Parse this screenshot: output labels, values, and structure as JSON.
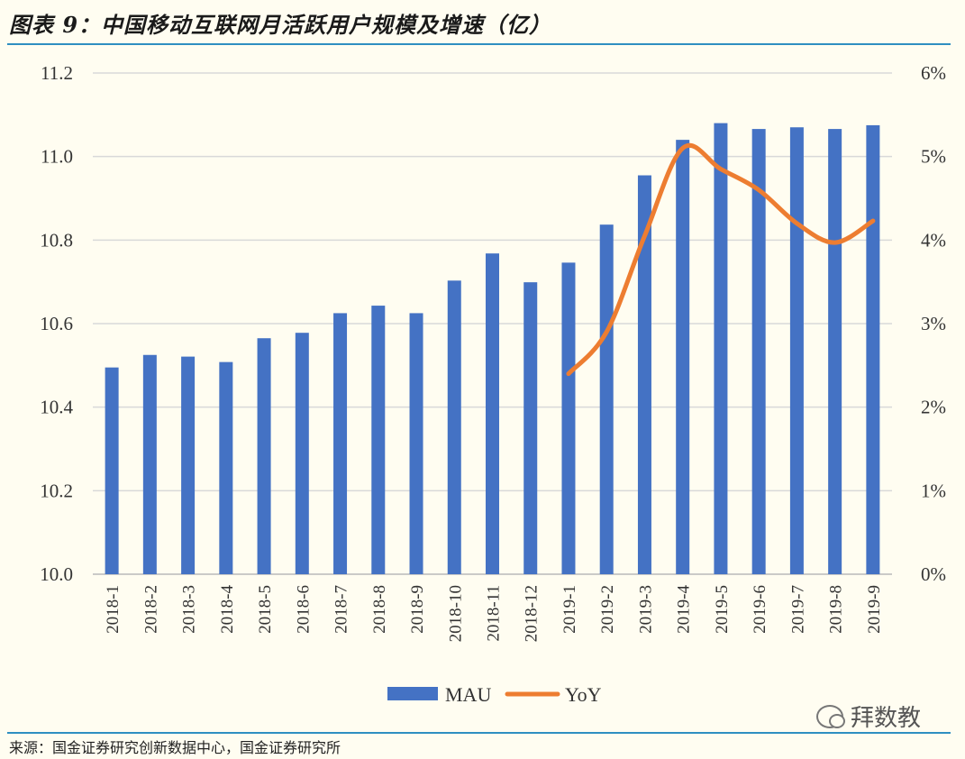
{
  "figure": {
    "title": "图表 9：中国移动互联网月活跃用户规模及增速（亿）",
    "source": "来源：国金证券研究创新数据中心，国金证券研究所",
    "watermark_text": "拜数教",
    "watermark_icon": "wechat-icon"
  },
  "chart_data": {
    "type": "bar",
    "categories": [
      "2018-1",
      "2018-2",
      "2018-3",
      "2018-4",
      "2018-5",
      "2018-6",
      "2018-7",
      "2018-8",
      "2018-9",
      "2018-10",
      "2018-11",
      "2018-12",
      "2019-1",
      "2019-2",
      "2019-3",
      "2019-4",
      "2019-5",
      "2019-6",
      "2019-7",
      "2019-8",
      "2019-9"
    ],
    "series": [
      {
        "name": "MAU",
        "type": "bar",
        "axis": "left",
        "color": "#4472c4",
        "values": [
          10.495,
          10.525,
          10.521,
          10.508,
          10.565,
          10.578,
          10.625,
          10.643,
          10.625,
          10.703,
          10.768,
          10.699,
          10.746,
          10.837,
          10.955,
          11.04,
          11.08,
          11.066,
          11.07,
          11.066,
          11.075
        ]
      },
      {
        "name": "YoY",
        "type": "line",
        "axis": "right",
        "color": "#ed7d31",
        "values": [
          null,
          null,
          null,
          null,
          null,
          null,
          null,
          null,
          null,
          null,
          null,
          null,
          0.024,
          0.029,
          0.0405,
          0.051,
          0.0485,
          0.046,
          0.042,
          0.0397,
          0.0423
        ]
      }
    ],
    "y_left": {
      "min": 10.0,
      "max": 11.2,
      "ticks": [
        "10.0",
        "10.2",
        "10.4",
        "10.6",
        "10.8",
        "11.0",
        "11.2"
      ]
    },
    "y_right": {
      "min": 0,
      "max": 0.06,
      "ticks": [
        "0%",
        "1%",
        "2%",
        "3%",
        "4%",
        "5%",
        "6%"
      ]
    },
    "grid": true,
    "legend_position": "bottom"
  }
}
